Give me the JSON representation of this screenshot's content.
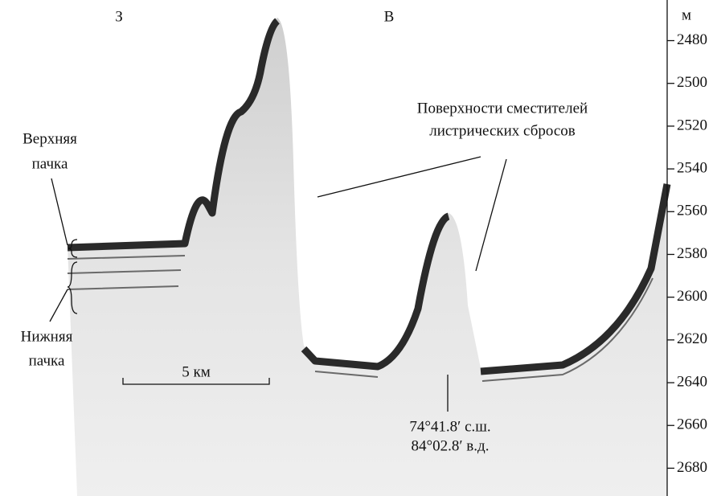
{
  "labels": {
    "west": "З",
    "east": "В",
    "faults": [
      "Поверхности сместителей",
      "листрических сбросов"
    ],
    "upper_unit": [
      "Верхняя",
      "пачка"
    ],
    "lower_unit": [
      "Нижняя",
      "пачка"
    ],
    "scale": "5 км",
    "coords": [
      "74°41.8′ с.ш.",
      "84°02.8′ в.д."
    ]
  },
  "depth_axis": {
    "unit": "м",
    "lim": [
      2461,
      2693
    ],
    "ticks": [
      2480,
      2500,
      2520,
      2540,
      2560,
      2580,
      2600,
      2620,
      2640,
      2660,
      2680
    ]
  }
}
